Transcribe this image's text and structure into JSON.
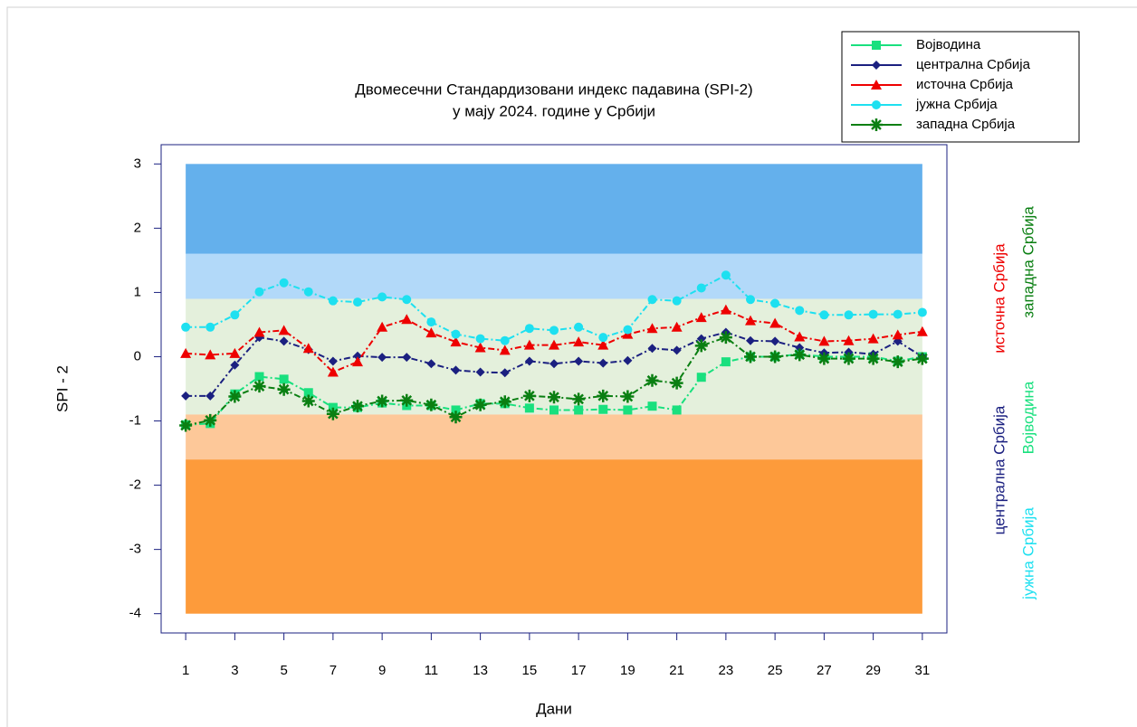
{
  "chart_data": {
    "type": "line",
    "title": "Двомесечни Стандардизовани индекс падавина (SPI-2)",
    "subtitle": "у мају 2024. године у Србији",
    "xlabel": "Дани",
    "ylabel": "SPI - 2",
    "x": [
      1,
      2,
      3,
      4,
      5,
      6,
      7,
      8,
      9,
      10,
      11,
      12,
      13,
      14,
      15,
      16,
      17,
      18,
      19,
      20,
      21,
      22,
      23,
      24,
      25,
      26,
      27,
      28,
      29,
      30,
      31
    ],
    "xlim": [
      0,
      32
    ],
    "xticks": [
      1,
      3,
      5,
      7,
      9,
      11,
      13,
      15,
      17,
      19,
      21,
      23,
      25,
      27,
      29,
      31
    ],
    "ylim": [
      -4.3,
      3.3
    ],
    "yticks": [
      3,
      2,
      1,
      0,
      -1,
      -2,
      -3,
      -4
    ],
    "bands": [
      {
        "from": 1.6,
        "to": 3,
        "color": "#64b0ec"
      },
      {
        "from": 0.9,
        "to": 1.6,
        "color": "#b2d9f9"
      },
      {
        "from": -0.9,
        "to": 0.9,
        "color": "#e4f0dc"
      },
      {
        "from": -1.6,
        "to": -0.9,
        "color": "#fdc899"
      },
      {
        "from": -4,
        "to": -1.6,
        "color": "#fd9b3b"
      }
    ],
    "series": [
      {
        "name": "Војводина",
        "color": "#19e07e",
        "marker": "square",
        "values": [
          -1.06,
          -1.04,
          -0.58,
          -0.31,
          -0.35,
          -0.56,
          -0.79,
          -0.79,
          -0.72,
          -0.76,
          -0.76,
          -0.83,
          -0.73,
          -0.73,
          -0.8,
          -0.83,
          -0.83,
          -0.82,
          -0.83,
          -0.77,
          -0.83,
          -0.32,
          -0.08,
          0,
          0,
          0.04,
          0,
          0,
          0,
          -0.07,
          0
        ]
      },
      {
        "name": "централна Србија",
        "color": "#1b2080",
        "marker": "diamond",
        "values": [
          -0.61,
          -0.61,
          -0.13,
          0.3,
          0.24,
          0.11,
          -0.07,
          0.01,
          -0.01,
          -0.01,
          -0.11,
          -0.21,
          -0.24,
          -0.25,
          -0.07,
          -0.11,
          -0.07,
          -0.1,
          -0.06,
          0.13,
          0.1,
          0.28,
          0.38,
          0.25,
          0.24,
          0.14,
          0.06,
          0.07,
          0.04,
          0.24,
          0
        ]
      },
      {
        "name": "источна Србија",
        "color": "#ee0000",
        "marker": "triangle",
        "values": [
          0.05,
          0.03,
          0.05,
          0.38,
          0.41,
          0.13,
          -0.24,
          -0.08,
          0.46,
          0.58,
          0.37,
          0.23,
          0.14,
          0.1,
          0.18,
          0.18,
          0.23,
          0.18,
          0.35,
          0.44,
          0.46,
          0.61,
          0.73,
          0.56,
          0.52,
          0.31,
          0.24,
          0.25,
          0.28,
          0.34,
          0.39
        ]
      },
      {
        "name": "јужна Србија",
        "color": "#1ee0f0",
        "marker": "circle",
        "values": [
          0.46,
          0.46,
          0.65,
          1.01,
          1.15,
          1.01,
          0.87,
          0.85,
          0.93,
          0.89,
          0.54,
          0.35,
          0.28,
          0.25,
          0.44,
          0.41,
          0.46,
          0.3,
          0.42,
          0.89,
          0.87,
          1.07,
          1.27,
          0.89,
          0.83,
          0.72,
          0.65,
          0.65,
          0.66,
          0.66,
          0.69
        ]
      },
      {
        "name": "западна Србија",
        "color": "#0a7f12",
        "marker": "asterisk",
        "values": [
          -1.07,
          -0.99,
          -0.62,
          -0.46,
          -0.51,
          -0.69,
          -0.89,
          -0.77,
          -0.69,
          -0.68,
          -0.75,
          -0.94,
          -0.75,
          -0.7,
          -0.61,
          -0.63,
          -0.66,
          -0.61,
          -0.62,
          -0.37,
          -0.41,
          0.17,
          0.3,
          0,
          0,
          0.03,
          -0.03,
          -0.03,
          -0.03,
          -0.08,
          -0.03
        ]
      }
    ]
  }
}
